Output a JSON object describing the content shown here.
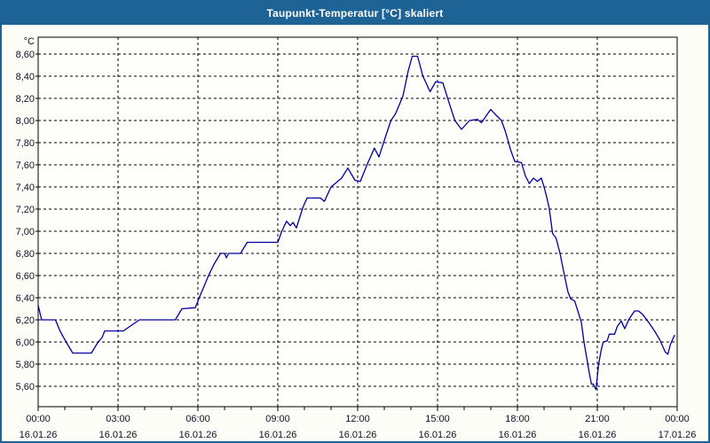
{
  "window": {
    "title": "Taupunkt-Temperatur [°C] skaliert"
  },
  "colors": {
    "titlebar_bg": "#1e6395",
    "titlebar_text": "#ffffff",
    "frame": "#1e6395",
    "page_bg": "#fcfdf6",
    "plot_bg": "#fefefa",
    "plot_border": "#000000",
    "grid": "#000000",
    "line": "#0000a0",
    "label": "#10102a"
  },
  "chart_data": {
    "type": "line",
    "title": "Taupunkt-Temperatur [°C] skaliert",
    "unit_label": "°C",
    "xlabel": "",
    "ylabel": "°C",
    "xlim_hours": [
      0,
      24
    ],
    "ylim": [
      5.42,
      8.75
    ],
    "grid": "dashed",
    "legend": "none",
    "y_ticks": [
      {
        "value": 8.6,
        "label": "8,60"
      },
      {
        "value": 8.4,
        "label": "8,40"
      },
      {
        "value": 8.2,
        "label": "8,20"
      },
      {
        "value": 8.0,
        "label": "8,00"
      },
      {
        "value": 7.8,
        "label": "7,80"
      },
      {
        "value": 7.6,
        "label": "7,60"
      },
      {
        "value": 7.4,
        "label": "7,40"
      },
      {
        "value": 7.2,
        "label": "7,20"
      },
      {
        "value": 7.0,
        "label": "7,00"
      },
      {
        "value": 6.8,
        "label": "6,80"
      },
      {
        "value": 6.6,
        "label": "6,60"
      },
      {
        "value": 6.4,
        "label": "6,40"
      },
      {
        "value": 6.2,
        "label": "6,20"
      },
      {
        "value": 6.0,
        "label": "6,00"
      },
      {
        "value": 5.8,
        "label": "5,80"
      },
      {
        "value": 5.6,
        "label": "5,60"
      }
    ],
    "x_ticks": [
      {
        "hour": 0,
        "time": "00:00",
        "date": "16.01.26"
      },
      {
        "hour": 3,
        "time": "03:00",
        "date": "16.01.26"
      },
      {
        "hour": 6,
        "time": "06:00",
        "date": "16.01.26"
      },
      {
        "hour": 9,
        "time": "09:00",
        "date": "16.01.26"
      },
      {
        "hour": 12,
        "time": "12:00",
        "date": "16.01.26"
      },
      {
        "hour": 15,
        "time": "15:00",
        "date": "16.01.26"
      },
      {
        "hour": 18,
        "time": "18:00",
        "date": "16.01.26"
      },
      {
        "hour": 21,
        "time": "21:00",
        "date": "16.01.26"
      },
      {
        "hour": 24,
        "time": "00:00",
        "date": "17.01.26"
      }
    ],
    "minor_x_tick_every_hours": 1,
    "series": [
      {
        "name": "Taupunkt-Temperatur",
        "color": "#0000a0",
        "points": [
          [
            0.0,
            6.33
          ],
          [
            0.13,
            6.2
          ],
          [
            0.65,
            6.2
          ],
          [
            0.82,
            6.1
          ],
          [
            1.05,
            6.0
          ],
          [
            1.3,
            5.9
          ],
          [
            2.0,
            5.9
          ],
          [
            2.25,
            6.0
          ],
          [
            2.4,
            6.04
          ],
          [
            2.5,
            6.1
          ],
          [
            3.2,
            6.1
          ],
          [
            3.8,
            6.2
          ],
          [
            5.15,
            6.2
          ],
          [
            5.4,
            6.3
          ],
          [
            5.9,
            6.31
          ],
          [
            6.05,
            6.4
          ],
          [
            6.4,
            6.6
          ],
          [
            6.6,
            6.7
          ],
          [
            6.85,
            6.8
          ],
          [
            7.0,
            6.8
          ],
          [
            7.07,
            6.76
          ],
          [
            7.15,
            6.8
          ],
          [
            7.6,
            6.8
          ],
          [
            7.85,
            6.9
          ],
          [
            9.0,
            6.9
          ],
          [
            9.15,
            7.0
          ],
          [
            9.33,
            7.09
          ],
          [
            9.47,
            7.05
          ],
          [
            9.57,
            7.08
          ],
          [
            9.7,
            7.03
          ],
          [
            9.95,
            7.22
          ],
          [
            10.1,
            7.3
          ],
          [
            10.6,
            7.3
          ],
          [
            10.75,
            7.27
          ],
          [
            11.0,
            7.4
          ],
          [
            11.2,
            7.44
          ],
          [
            11.4,
            7.48
          ],
          [
            11.63,
            7.57
          ],
          [
            11.9,
            7.46
          ],
          [
            12.1,
            7.45
          ],
          [
            12.35,
            7.6
          ],
          [
            12.63,
            7.75
          ],
          [
            12.8,
            7.67
          ],
          [
            13.0,
            7.82
          ],
          [
            13.25,
            8.0
          ],
          [
            13.42,
            8.06
          ],
          [
            13.7,
            8.22
          ],
          [
            13.9,
            8.45
          ],
          [
            14.05,
            8.58
          ],
          [
            14.25,
            8.58
          ],
          [
            14.45,
            8.4
          ],
          [
            14.72,
            8.26
          ],
          [
            14.93,
            8.35
          ],
          [
            15.2,
            8.34
          ],
          [
            15.42,
            8.17
          ],
          [
            15.65,
            8.0
          ],
          [
            15.9,
            7.92
          ],
          [
            16.2,
            8.0
          ],
          [
            16.5,
            8.01
          ],
          [
            16.65,
            7.98
          ],
          [
            16.85,
            8.05
          ],
          [
            17.0,
            8.1
          ],
          [
            17.15,
            8.06
          ],
          [
            17.4,
            8.0
          ],
          [
            17.55,
            7.9
          ],
          [
            17.75,
            7.73
          ],
          [
            17.9,
            7.63
          ],
          [
            18.15,
            7.62
          ],
          [
            18.3,
            7.5
          ],
          [
            18.45,
            7.43
          ],
          [
            18.6,
            7.48
          ],
          [
            18.75,
            7.45
          ],
          [
            18.9,
            7.48
          ],
          [
            19.0,
            7.4
          ],
          [
            19.1,
            7.31
          ],
          [
            19.2,
            7.2
          ],
          [
            19.32,
            6.98
          ],
          [
            19.45,
            6.94
          ],
          [
            19.6,
            6.8
          ],
          [
            19.75,
            6.62
          ],
          [
            19.9,
            6.45
          ],
          [
            20.0,
            6.39
          ],
          [
            20.15,
            6.37
          ],
          [
            20.4,
            6.18
          ],
          [
            20.5,
            6.0
          ],
          [
            20.6,
            5.86
          ],
          [
            20.7,
            5.72
          ],
          [
            20.78,
            5.62
          ],
          [
            20.85,
            5.62
          ],
          [
            20.95,
            5.57
          ],
          [
            21.05,
            5.8
          ],
          [
            21.15,
            5.93
          ],
          [
            21.22,
            6.0
          ],
          [
            21.37,
            6.01
          ],
          [
            21.45,
            6.07
          ],
          [
            21.65,
            6.07
          ],
          [
            21.75,
            6.14
          ],
          [
            21.9,
            6.19
          ],
          [
            22.03,
            6.12
          ],
          [
            22.2,
            6.21
          ],
          [
            22.4,
            6.28
          ],
          [
            22.55,
            6.28
          ],
          [
            22.7,
            6.25
          ],
          [
            22.95,
            6.17
          ],
          [
            23.15,
            6.1
          ],
          [
            23.35,
            6.02
          ],
          [
            23.55,
            5.91
          ],
          [
            23.65,
            5.89
          ],
          [
            23.75,
            5.98
          ],
          [
            23.9,
            6.06
          ]
        ]
      }
    ]
  }
}
